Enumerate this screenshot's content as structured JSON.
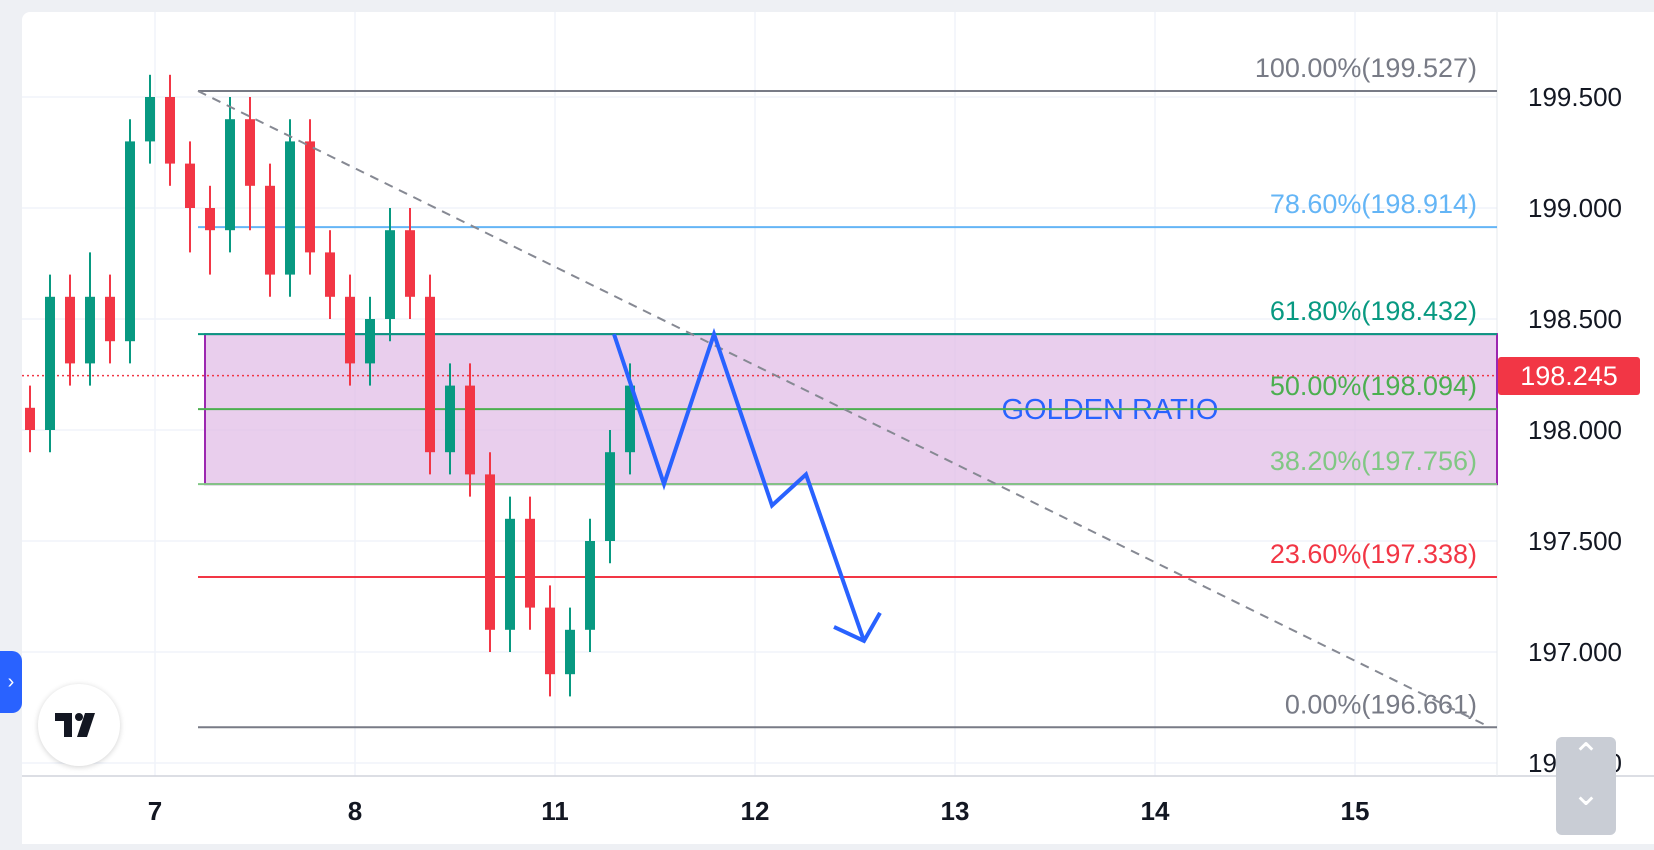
{
  "chart_data": {
    "type": "candlestick",
    "y_ticks": [
      "199.500",
      "199.000",
      "198.500",
      "198.000",
      "197.500",
      "197.000",
      "196.500"
    ],
    "x_ticks": [
      "7",
      "8",
      "11",
      "12",
      "13",
      "14",
      "15"
    ],
    "ylim": [
      196.45,
      199.87
    ],
    "current_price": "198.245",
    "current_price_value": 198.245,
    "fib_levels": [
      {
        "label": "100.00%(199.527)",
        "value": 199.527,
        "color": "#787b86"
      },
      {
        "label": "78.60%(198.914)",
        "value": 198.914,
        "color": "#64b5f6"
      },
      {
        "label": "61.80%(198.432)",
        "value": 198.432,
        "color": "#089981"
      },
      {
        "label": "50.00%(198.094)",
        "value": 198.094,
        "color": "#4caf50"
      },
      {
        "label": "38.20%(197.756)",
        "value": 197.756,
        "color": "#81c784"
      },
      {
        "label": "23.60%(197.338)",
        "value": 197.338,
        "color": "#f23645"
      },
      {
        "label": "0.00%(196.661)",
        "value": 196.661,
        "color": "#787b86"
      }
    ],
    "zone": {
      "label": "GOLDEN RATIO",
      "top": 198.432,
      "bottom": 197.756,
      "fill": "#e1bee7",
      "stroke": "#9c27b0"
    },
    "trendline": {
      "from": {
        "x": "7",
        "y": 199.527
      },
      "to": {
        "x": "15",
        "y": 196.661
      }
    },
    "projection_path": [
      198.432,
      197.756,
      198.432,
      197.66,
      197.8,
      197.05
    ],
    "candles": [
      [
        198.1,
        198.0,
        198.2,
        197.9
      ],
      [
        198.0,
        198.6,
        198.7,
        197.9
      ],
      [
        198.6,
        198.3,
        198.7,
        198.2
      ],
      [
        198.3,
        198.6,
        198.8,
        198.2
      ],
      [
        198.6,
        198.4,
        198.7,
        198.3
      ],
      [
        198.4,
        199.3,
        199.4,
        198.3
      ],
      [
        199.3,
        199.5,
        199.6,
        199.2
      ],
      [
        199.5,
        199.2,
        199.6,
        199.1
      ],
      [
        199.2,
        199.0,
        199.3,
        198.8
      ],
      [
        199.0,
        198.9,
        199.1,
        198.7
      ],
      [
        198.9,
        199.4,
        199.5,
        198.8
      ],
      [
        199.4,
        199.1,
        199.5,
        198.9
      ],
      [
        199.1,
        198.7,
        199.2,
        198.6
      ],
      [
        198.7,
        199.3,
        199.4,
        198.6
      ],
      [
        199.3,
        198.8,
        199.4,
        198.7
      ],
      [
        198.8,
        198.6,
        198.9,
        198.5
      ],
      [
        198.6,
        198.3,
        198.7,
        198.2
      ],
      [
        198.3,
        198.5,
        198.6,
        198.2
      ],
      [
        198.5,
        198.9,
        199.0,
        198.4
      ],
      [
        198.9,
        198.6,
        199.0,
        198.5
      ],
      [
        198.6,
        197.9,
        198.7,
        197.8
      ],
      [
        197.9,
        198.2,
        198.3,
        197.8
      ],
      [
        198.2,
        197.8,
        198.3,
        197.7
      ],
      [
        197.8,
        197.1,
        197.9,
        197.0
      ],
      [
        197.1,
        197.6,
        197.7,
        197.0
      ],
      [
        197.6,
        197.2,
        197.7,
        197.1
      ],
      [
        197.2,
        196.9,
        197.3,
        196.8
      ],
      [
        196.9,
        197.1,
        197.2,
        196.8
      ],
      [
        197.1,
        197.5,
        197.6,
        197.0
      ],
      [
        197.5,
        197.9,
        198.0,
        197.4
      ],
      [
        197.9,
        198.2,
        198.3,
        197.8
      ]
    ]
  }
}
